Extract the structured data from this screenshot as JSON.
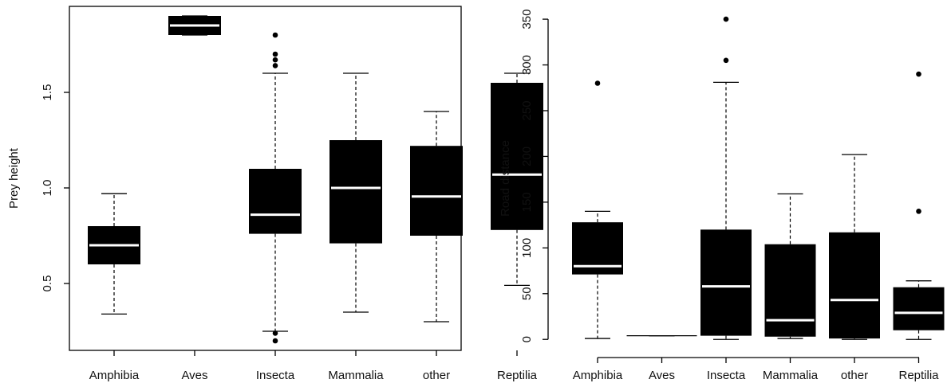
{
  "chart_data": [
    {
      "type": "boxplot",
      "ylabel": "Prey height",
      "categories": [
        "Amphibia",
        "Aves",
        "Insecta",
        "Mammalia",
        "other",
        "Reptilia"
      ],
      "ylim": [
        0.15,
        1.95
      ],
      "yticks": [
        0.5,
        1.0,
        1.5
      ],
      "ytick_labels": [
        "0.5",
        "1.0",
        "1.5"
      ],
      "boxes": [
        {
          "category": "Amphibia",
          "whislo": 0.34,
          "q1": 0.6,
          "median": 0.7,
          "q3": 0.8,
          "whishi": 0.97,
          "outliers": []
        },
        {
          "category": "Aves",
          "whislo": 1.8,
          "q1": 1.8,
          "median": 1.85,
          "q3": 1.9,
          "whishi": 1.9,
          "outliers": []
        },
        {
          "category": "Insecta",
          "whislo": 0.25,
          "q1": 0.76,
          "median": 0.86,
          "q3": 1.1,
          "whishi": 1.6,
          "outliers": [
            0.2,
            0.24,
            1.64,
            1.67,
            1.7,
            1.8
          ]
        },
        {
          "category": "Mammalia",
          "whislo": 0.35,
          "q1": 0.71,
          "median": 1.0,
          "q3": 1.25,
          "whishi": 1.6,
          "outliers": []
        },
        {
          "category": "other",
          "whislo": 0.3,
          "q1": 0.75,
          "median": 0.955,
          "q3": 1.22,
          "whishi": 1.4,
          "outliers": []
        },
        {
          "category": "Reptilia",
          "whislo": 0.49,
          "q1": 0.78,
          "median": 1.07,
          "q3": 1.55,
          "whishi": 1.6,
          "outliers": []
        }
      ]
    },
    {
      "type": "boxplot",
      "ylabel": "Road distance",
      "categories": [
        "Amphibia",
        "Aves",
        "Insecta",
        "Mammalia",
        "other",
        "Reptilia"
      ],
      "ylim": [
        -12,
        364
      ],
      "yticks": [
        0,
        50,
        100,
        150,
        200,
        250,
        300,
        350
      ],
      "ytick_labels": [
        "0",
        "50",
        "100",
        "150",
        "200",
        "250",
        "300",
        "350"
      ],
      "boxes": [
        {
          "category": "Amphibia",
          "whislo": 1,
          "q1": 71,
          "median": 80,
          "q3": 128,
          "whishi": 140,
          "outliers": [
            280
          ]
        },
        {
          "category": "Aves",
          "whislo": 4,
          "q1": 4,
          "median": 4,
          "q3": 4,
          "whishi": 4,
          "outliers": []
        },
        {
          "category": "Insecta",
          "whislo": 0,
          "q1": 4,
          "median": 58,
          "q3": 120,
          "whishi": 281,
          "outliers": [
            305,
            350
          ]
        },
        {
          "category": "Mammalia",
          "whislo": 1,
          "q1": 3,
          "median": 21,
          "q3": 104,
          "whishi": 159,
          "outliers": []
        },
        {
          "category": "other",
          "whislo": 0,
          "q1": 1,
          "median": 43,
          "q3": 117,
          "whishi": 202,
          "outliers": []
        },
        {
          "category": "Reptilia",
          "whislo": 0,
          "q1": 10,
          "median": 29,
          "q3": 57,
          "whishi": 64,
          "outliers": [
            140,
            290
          ]
        }
      ]
    }
  ]
}
